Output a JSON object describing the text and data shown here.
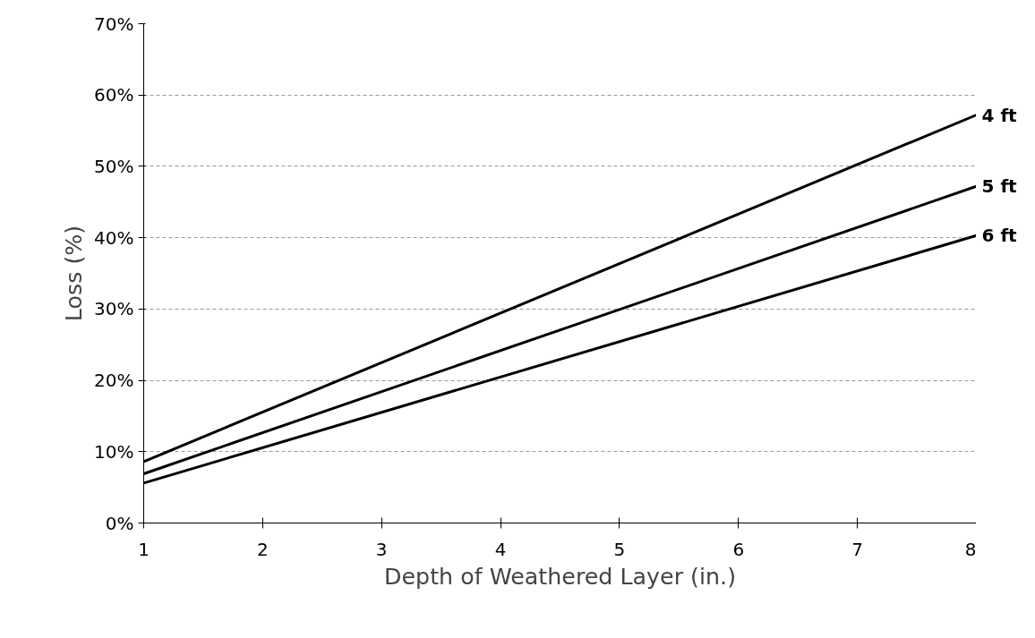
{
  "chart_data": {
    "type": "line",
    "xlabel": "Depth of Weathered Layer (in.)",
    "ylabel": "Loss (%)",
    "x": [
      1,
      8
    ],
    "series": [
      {
        "name": "4 ft",
        "color": "#000000",
        "values": [
          8.6,
          57.2
        ]
      },
      {
        "name": "5 ft",
        "color": "#000000",
        "values": [
          6.9,
          47.2
        ]
      },
      {
        "name": "6 ft",
        "color": "#000000",
        "values": [
          5.6,
          40.3
        ]
      }
    ],
    "xlim": [
      1,
      8
    ],
    "xticks": [
      1,
      2,
      3,
      4,
      5,
      6,
      7,
      8
    ],
    "ylim": [
      0,
      70
    ],
    "yticks": [
      {
        "value": 0,
        "label": "0%"
      },
      {
        "value": 10,
        "label": "10%"
      },
      {
        "value": 20,
        "label": "20%"
      },
      {
        "value": 30,
        "label": "30%"
      },
      {
        "value": 40,
        "label": "40%"
      },
      {
        "value": 50,
        "label": "50%"
      },
      {
        "value": 60,
        "label": "60%"
      },
      {
        "value": 70,
        "label": "70%"
      }
    ],
    "grid": "y",
    "legend": false,
    "marker": "none",
    "line_style": "solid"
  }
}
